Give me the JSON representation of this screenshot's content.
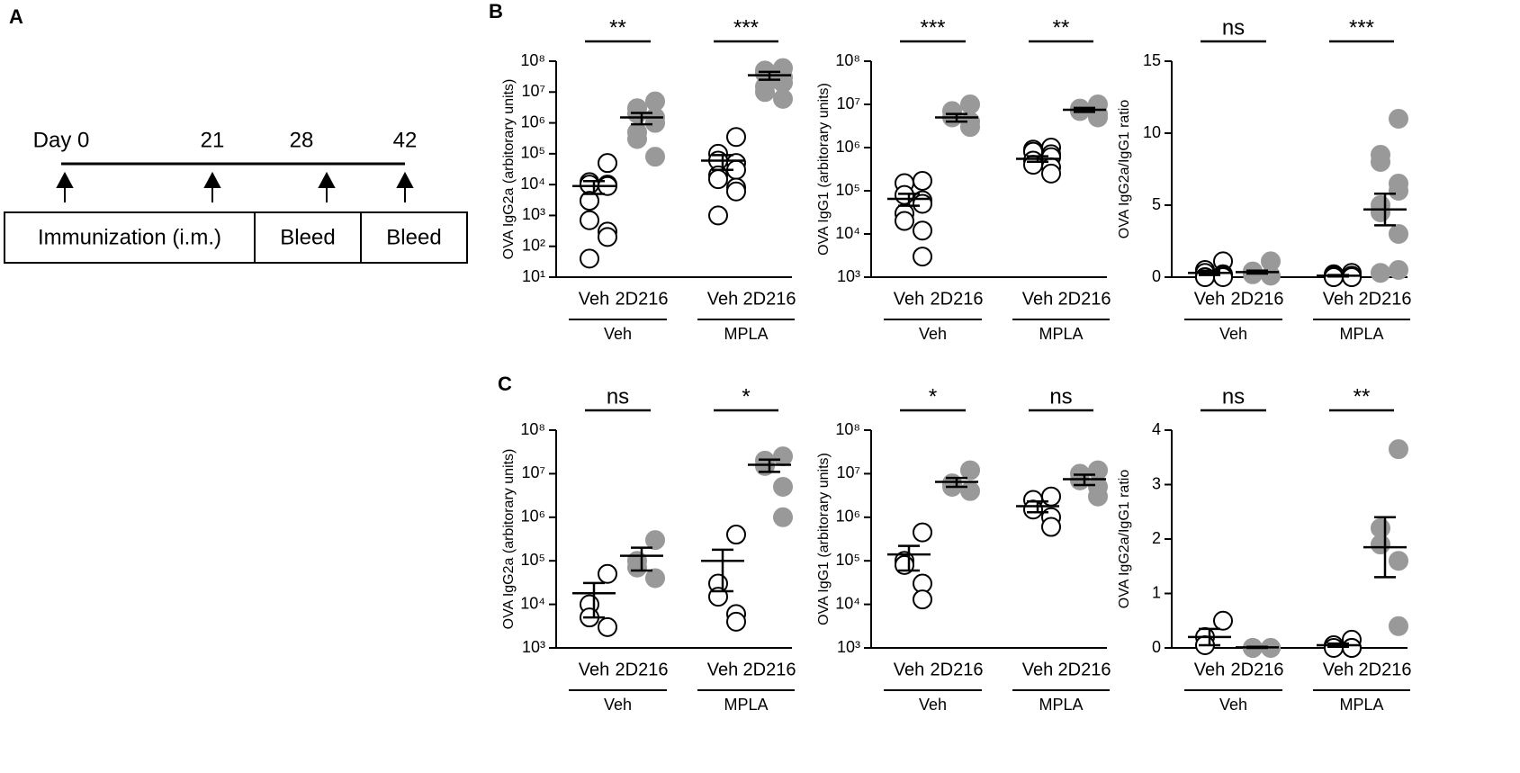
{
  "panel_labels": [
    "A",
    "B",
    "C"
  ],
  "timeline": {
    "days": [
      "Day 0",
      "21",
      "28",
      "42"
    ],
    "boxes": [
      "Immunization (i.m.)",
      "Bleed",
      "Bleed"
    ]
  },
  "chart_data": [
    {
      "type": "dot",
      "ylabel": "OVA IgG2a (arbitorary units)",
      "log": true,
      "ylim": [
        10,
        100000000
      ],
      "yticks": [
        {
          "value": 10,
          "label": "10¹"
        },
        {
          "value": 100,
          "label": "10²"
        },
        {
          "value": 1000,
          "label": "10³"
        },
        {
          "value": 10000,
          "label": "10⁴"
        },
        {
          "value": 100000,
          "label": "10⁵"
        },
        {
          "value": 1000000,
          "label": "10⁶"
        },
        {
          "value": 10000000,
          "label": "10⁷"
        },
        {
          "value": 100000000,
          "label": "10⁸"
        }
      ],
      "categories": [
        "Veh",
        "2D216",
        "Veh",
        "2D216"
      ],
      "groups": [
        "Veh",
        "MPLA"
      ],
      "significance": [
        "**",
        "***"
      ],
      "colors": [
        "#ffffff",
        "#999999",
        "#ffffff",
        "#999999"
      ],
      "values": [
        [
          50000,
          12000,
          10000,
          10000,
          9000,
          3000,
          700,
          300,
          200,
          40
        ],
        [
          5000000,
          3000000,
          2000000,
          1500000,
          1000000,
          500000,
          300000,
          80000
        ],
        [
          350000,
          100000,
          60000,
          50000,
          30000,
          20000,
          15000,
          8000,
          6000,
          1000
        ],
        [
          60000000,
          50000000,
          40000000,
          30000000,
          20000000,
          15000000,
          10000000,
          6000000
        ]
      ],
      "mean": [
        9000,
        1500000,
        60000,
        35000000
      ],
      "sem": [
        4000,
        600000,
        30000,
        10000000
      ]
    },
    {
      "type": "dot",
      "ylabel": "OVA IgG1 (arbitorary units)",
      "log": true,
      "ylim": [
        1000,
        100000000
      ],
      "yticks": [
        {
          "value": 1000,
          "label": "10³"
        },
        {
          "value": 10000,
          "label": "10⁴"
        },
        {
          "value": 100000,
          "label": "10⁵"
        },
        {
          "value": 1000000,
          "label": "10⁶"
        },
        {
          "value": 10000000,
          "label": "10⁷"
        },
        {
          "value": 100000000,
          "label": "10⁸"
        }
      ],
      "categories": [
        "Veh",
        "2D216",
        "Veh",
        "2D216"
      ],
      "groups": [
        "Veh",
        "MPLA"
      ],
      "significance": [
        "***",
        "**"
      ],
      "colors": [
        "#ffffff",
        "#999999",
        "#ffffff",
        "#999999"
      ],
      "values": [
        [
          170000,
          150000,
          80000,
          60000,
          50000,
          30000,
          20000,
          12000,
          3000
        ],
        [
          10000000,
          7000000,
          5000000,
          4000000,
          3000000
        ],
        [
          1000000,
          900000,
          800000,
          700000,
          600000,
          500000,
          400000,
          350000,
          250000
        ],
        [
          10000000,
          8000000,
          7000000,
          6000000,
          5000000
        ]
      ],
      "mean": [
        65000,
        5000000,
        550000,
        7500000
      ],
      "sem": [
        20000,
        1000000,
        80000,
        800000
      ]
    },
    {
      "type": "dot",
      "ylabel": "OVA IgG2a/IgG1 ratio",
      "log": false,
      "ylim": [
        0,
        15
      ],
      "yticks": [
        0,
        5,
        10,
        15
      ],
      "categories": [
        "Veh",
        "2D216",
        "Veh",
        "2D216"
      ],
      "groups": [
        "Veh",
        "MPLA"
      ],
      "significance": [
        "ns",
        "***"
      ],
      "colors": [
        "#ffffff",
        "#999999",
        "#ffffff",
        "#999999"
      ],
      "values": [
        [
          1.1,
          0.5,
          0.3,
          0.2,
          0.1,
          0,
          0,
          0
        ],
        [
          1.1,
          0.4,
          0.2,
          0.1
        ],
        [
          0.3,
          0.2,
          0.1,
          0.1,
          0,
          0,
          0,
          0
        ],
        [
          11,
          8.5,
          8,
          6.5,
          6,
          5,
          4.5,
          3,
          0.5,
          0.3
        ]
      ],
      "mean": [
        0.3,
        0.35,
        0.1,
        4.7
      ],
      "sem": [
        0.15,
        0.1,
        0.05,
        1.1
      ]
    },
    {
      "type": "dot",
      "ylabel": "OVA IgG2a (arbitorary units)",
      "log": true,
      "ylim": [
        1000,
        100000000
      ],
      "yticks": [
        {
          "value": 1000,
          "label": "10³"
        },
        {
          "value": 10000,
          "label": "10⁴"
        },
        {
          "value": 100000,
          "label": "10⁵"
        },
        {
          "value": 1000000,
          "label": "10⁶"
        },
        {
          "value": 10000000,
          "label": "10⁷"
        },
        {
          "value": 100000000,
          "label": "10⁸"
        }
      ],
      "categories": [
        "Veh",
        "2D216",
        "Veh",
        "2D216"
      ],
      "groups": [
        "Veh",
        "MPLA"
      ],
      "significance": [
        "ns",
        "*"
      ],
      "colors": [
        "#ffffff",
        "#999999",
        "#ffffff",
        "#999999"
      ],
      "values": [
        [
          50000,
          10000,
          5000,
          3000
        ],
        [
          300000,
          100000,
          70000,
          40000
        ],
        [
          400000,
          30000,
          15000,
          6000,
          4000
        ],
        [
          25000000,
          20000000,
          15000000,
          5000000,
          1000000
        ]
      ],
      "mean": [
        18000,
        130000,
        100000,
        16000000
      ],
      "sem": [
        13000,
        70000,
        80000,
        5000000
      ]
    },
    {
      "type": "dot",
      "ylabel": "OVA IgG1 (arbitorary units)",
      "log": true,
      "ylim": [
        1000,
        100000000
      ],
      "yticks": [
        {
          "value": 1000,
          "label": "10³"
        },
        {
          "value": 10000,
          "label": "10⁴"
        },
        {
          "value": 100000,
          "label": "10⁵"
        },
        {
          "value": 1000000,
          "label": "10⁶"
        },
        {
          "value": 10000000,
          "label": "10⁷"
        },
        {
          "value": 100000000,
          "label": "10⁸"
        }
      ],
      "categories": [
        "Veh",
        "2D216",
        "Veh",
        "2D216"
      ],
      "groups": [
        "Veh",
        "MPLA"
      ],
      "significance": [
        "*",
        "ns"
      ],
      "colors": [
        "#ffffff",
        "#999999",
        "#ffffff",
        "#999999"
      ],
      "values": [
        [
          450000,
          100000,
          80000,
          30000,
          13000
        ],
        [
          12000000,
          6000000,
          5000000,
          4000000
        ],
        [
          3000000,
          2500000,
          1500000,
          1000000,
          600000
        ],
        [
          12000000,
          10000000,
          7000000,
          5000000,
          3000000
        ]
      ],
      "mean": [
        140000,
        6500000,
        1800000,
        7500000
      ],
      "sem": [
        80000,
        1500000,
        500000,
        2000000
      ]
    },
    {
      "type": "dot",
      "ylabel": "OVA IgG2a/IgG1 ratio",
      "log": false,
      "ylim": [
        0,
        4
      ],
      "yticks": [
        0,
        1,
        2,
        3,
        4
      ],
      "categories": [
        "Veh",
        "2D216",
        "Veh",
        "2D216"
      ],
      "groups": [
        "Veh",
        "MPLA"
      ],
      "significance": [
        "ns",
        "**"
      ],
      "colors": [
        "#ffffff",
        "#999999",
        "#ffffff",
        "#999999"
      ],
      "values": [
        [
          0.5,
          0.2,
          0.05
        ],
        [
          0,
          0,
          0,
          0
        ],
        [
          0.15,
          0.05,
          0,
          0,
          0
        ],
        [
          3.65,
          2.2,
          1.9,
          1.6,
          0.4
        ]
      ],
      "mean": [
        0.2,
        0.01,
        0.05,
        1.85
      ],
      "sem": [
        0.15,
        0.01,
        0.03,
        0.55
      ]
    }
  ]
}
